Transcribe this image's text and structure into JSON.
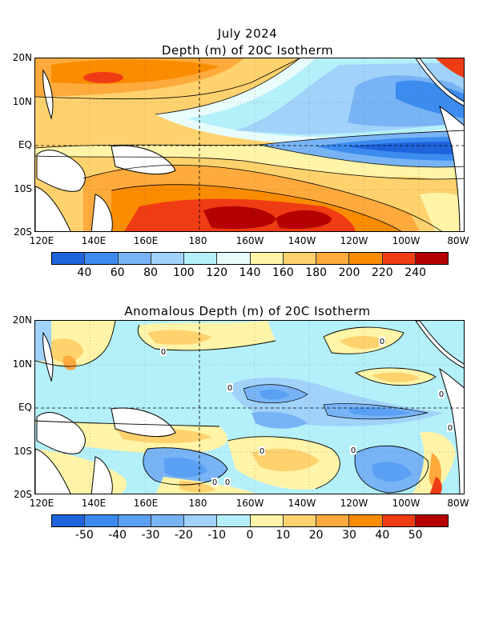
{
  "top_map": {
    "title_line1": "July 2024",
    "title_line2": "Depth (m) of 20C Isotherm",
    "lat_labels": [
      "20N",
      "10N",
      "EQ",
      "10S",
      "20S"
    ],
    "lon_labels": [
      "120E",
      "140E",
      "160E",
      "180",
      "160W",
      "140W",
      "120W",
      "100W",
      "80W"
    ],
    "colorbar": {
      "colors": [
        "#1f64dc",
        "#3c8cf0",
        "#78b4f5",
        "#a0d2fa",
        "#b4f0fa",
        "#e8fcfc",
        "#fff4a8",
        "#ffd26e",
        "#ffaa3c",
        "#fa8c00",
        "#f03c14",
        "#b40000"
      ],
      "labels": [
        "40",
        "60",
        "80",
        "100",
        "120",
        "140",
        "160",
        "180",
        "200",
        "220",
        "240"
      ]
    }
  },
  "bottom_map": {
    "title": "Anomalous Depth (m) of 20C Isotherm",
    "lat_labels": [
      "20N",
      "10N",
      "EQ",
      "10S",
      "20S"
    ],
    "lon_labels": [
      "120E",
      "140E",
      "160E",
      "180",
      "160W",
      "140W",
      "120W",
      "100W",
      "80W"
    ],
    "colorbar": {
      "colors": [
        "#1f64dc",
        "#3c8cf0",
        "#5aa0f5",
        "#78b4f5",
        "#a0d2fa",
        "#b4f0fa",
        "#fff4a8",
        "#ffd26e",
        "#ffaa3c",
        "#fa8c00",
        "#f03c14",
        "#b40000"
      ],
      "labels": [
        "-50",
        "-40",
        "-30",
        "-20",
        "-10",
        "0",
        "10",
        "20",
        "30",
        "40",
        "50"
      ]
    },
    "contour_labels": [
      "0",
      "0",
      "0",
      "0",
      "0",
      "0",
      "0",
      "0",
      "0"
    ]
  }
}
